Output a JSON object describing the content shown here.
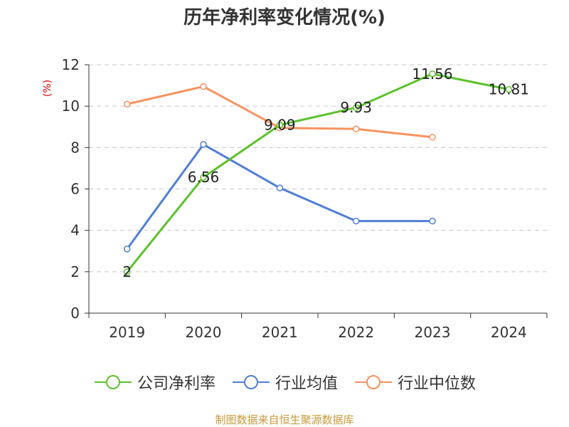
{
  "title": "历年净利率变化情况(%)",
  "unit_label": "(%)",
  "source": "制图数据来自恒生聚源数据库",
  "colors": {
    "company": "#5cc12b",
    "industry_avg": "#4f7fd6",
    "industry_median": "#f7925f",
    "unit": "#e00000",
    "source": "#c89a3a"
  },
  "chart_data": {
    "type": "line",
    "title": "历年净利率变化情况(%)",
    "ylabel": "(%)",
    "categories": [
      "2019",
      "2020",
      "2021",
      "2022",
      "2023",
      "2024"
    ],
    "ylim": [
      0,
      12
    ],
    "yticks": [
      0,
      2,
      4,
      6,
      8,
      10,
      12
    ],
    "grid": true,
    "legend_position": "bottom",
    "series": [
      {
        "name": "公司净利率",
        "color": "#5cc12b",
        "values": [
          2,
          6.56,
          9.09,
          9.93,
          11.56,
          10.81
        ],
        "labels": [
          "2",
          "6.56",
          "9.09",
          "9.93",
          "11.56",
          "10.81"
        ]
      },
      {
        "name": "行业均值",
        "color": "#4f7fd6",
        "values": [
          3.1,
          8.15,
          6.05,
          4.45,
          4.45,
          null
        ]
      },
      {
        "name": "行业中位数",
        "color": "#f7925f",
        "values": [
          10.1,
          10.95,
          8.95,
          8.9,
          8.5,
          null
        ]
      }
    ]
  }
}
